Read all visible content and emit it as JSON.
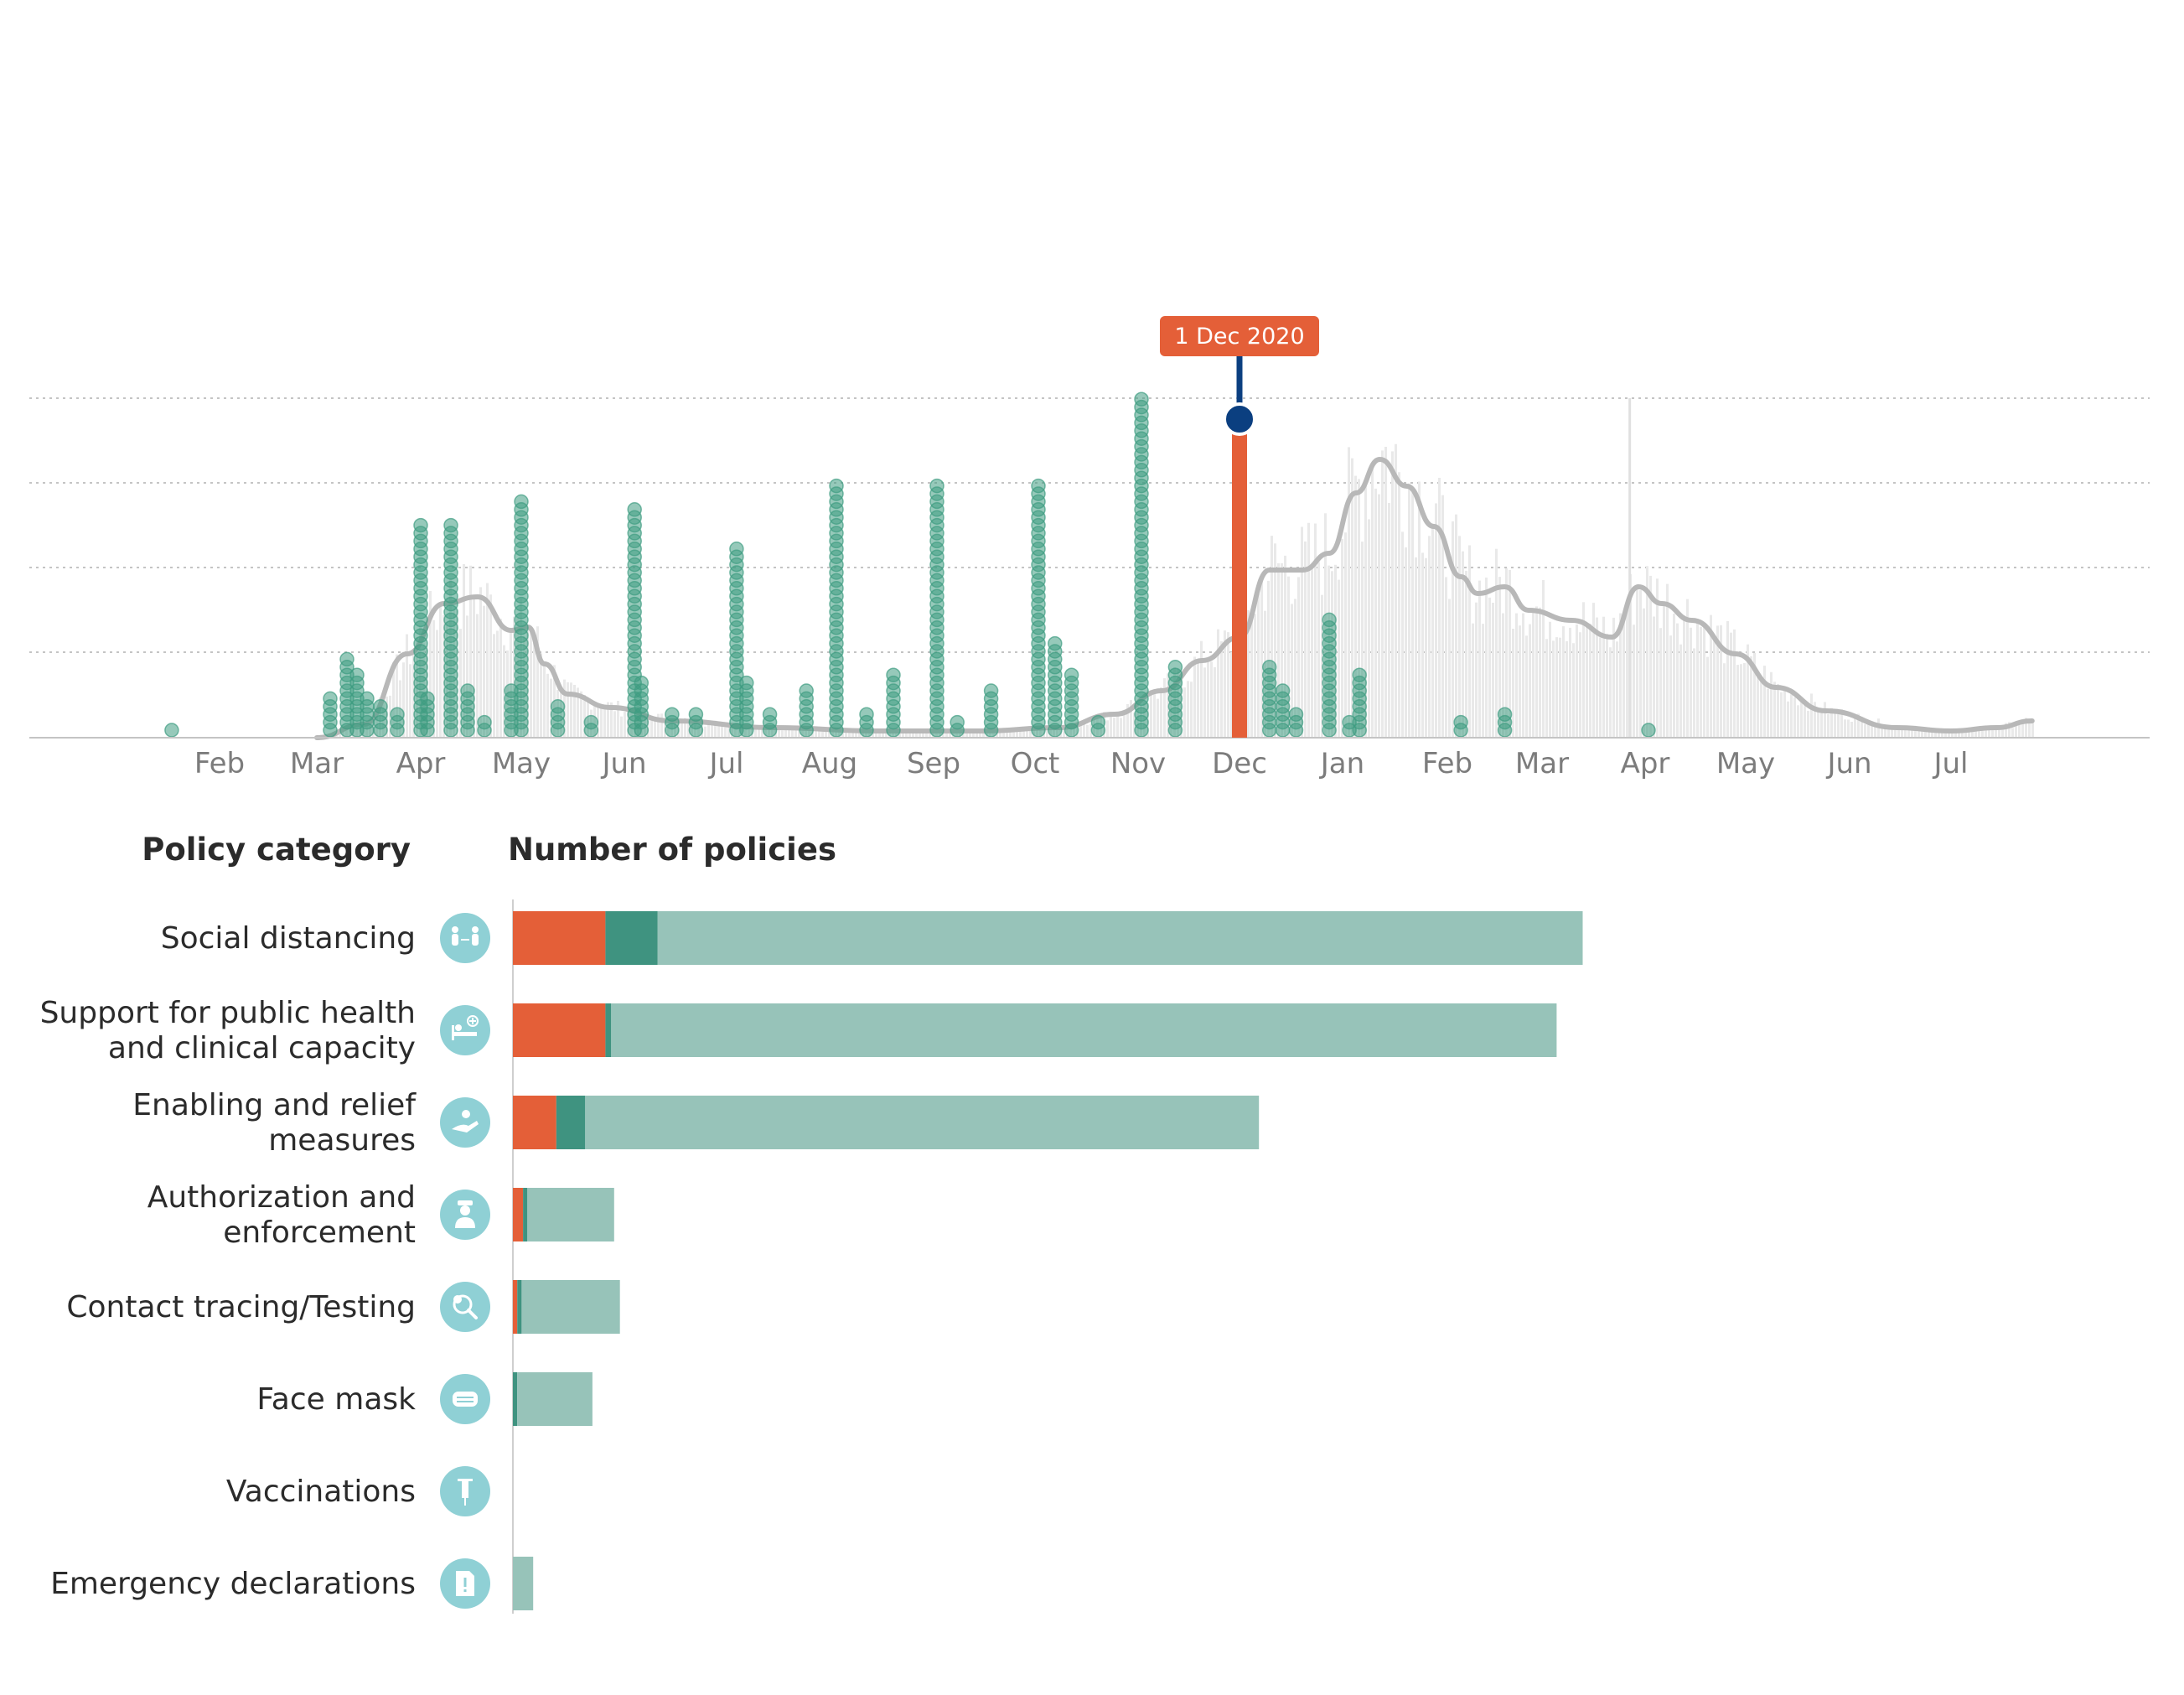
{
  "colors": {
    "recent": "#e45f38",
    "mid": "#3f9380",
    "older": "#97c3b9",
    "dot": "#3f9c82",
    "cases_bar": "#e9e9e9",
    "cases_line": "#b8b8b8",
    "grid": "#c4c4c4",
    "icon_circle": "#8fd0d5",
    "marker": "#0b3f80"
  },
  "timeline": {
    "x_tick_labels": [
      "Feb",
      "Mar",
      "Apr",
      "May",
      "Jun",
      "Jul",
      "Aug",
      "Sep",
      "Oct",
      "Nov",
      "Dec",
      "Jan",
      "Feb",
      "Mar",
      "Apr",
      "May",
      "Jun",
      "Jul"
    ],
    "selected_date_label": "1 Dec 2020"
  },
  "bars": {
    "title_left": "Policy category",
    "title_right": "Number of policies"
  },
  "chart_data": [
    {
      "type": "scatter",
      "title": "",
      "description": "Timeline of policy announcements (stacked dots per day) over daily COVID-19 cases (light bars) with 7-day average line",
      "x_range": [
        "2020-01-15",
        "2021-07-31"
      ],
      "grid": "horizontal dotted",
      "selected_date": "2020-12-01",
      "policy_dots": [
        {
          "date": "2020-01-17",
          "count": 1
        },
        {
          "date": "2020-03-05",
          "count": 5
        },
        {
          "date": "2020-03-10",
          "count": 10
        },
        {
          "date": "2020-03-13",
          "count": 8
        },
        {
          "date": "2020-03-16",
          "count": 5
        },
        {
          "date": "2020-03-20",
          "count": 4
        },
        {
          "date": "2020-03-25",
          "count": 3
        },
        {
          "date": "2020-04-01",
          "count": 27
        },
        {
          "date": "2020-04-03",
          "count": 5
        },
        {
          "date": "2020-04-10",
          "count": 27
        },
        {
          "date": "2020-04-15",
          "count": 6
        },
        {
          "date": "2020-04-20",
          "count": 2
        },
        {
          "date": "2020-04-28",
          "count": 6
        },
        {
          "date": "2020-05-01",
          "count": 30
        },
        {
          "date": "2020-05-12",
          "count": 4
        },
        {
          "date": "2020-05-22",
          "count": 2
        },
        {
          "date": "2020-06-04",
          "count": 29
        },
        {
          "date": "2020-06-06",
          "count": 7
        },
        {
          "date": "2020-06-15",
          "count": 3
        },
        {
          "date": "2020-06-22",
          "count": 3
        },
        {
          "date": "2020-07-04",
          "count": 24
        },
        {
          "date": "2020-07-07",
          "count": 7
        },
        {
          "date": "2020-07-14",
          "count": 3
        },
        {
          "date": "2020-07-25",
          "count": 6
        },
        {
          "date": "2020-08-03",
          "count": 32
        },
        {
          "date": "2020-08-12",
          "count": 3
        },
        {
          "date": "2020-08-20",
          "count": 8
        },
        {
          "date": "2020-09-02",
          "count": 32
        },
        {
          "date": "2020-09-08",
          "count": 2
        },
        {
          "date": "2020-09-18",
          "count": 6
        },
        {
          "date": "2020-10-02",
          "count": 32
        },
        {
          "date": "2020-10-07",
          "count": 12
        },
        {
          "date": "2020-10-12",
          "count": 8
        },
        {
          "date": "2020-10-20",
          "count": 2
        },
        {
          "date": "2020-11-02",
          "count": 43
        },
        {
          "date": "2020-11-12",
          "count": 9
        },
        {
          "date": "2020-12-01",
          "count": 41
        },
        {
          "date": "2020-12-10",
          "count": 9
        },
        {
          "date": "2020-12-14",
          "count": 6
        },
        {
          "date": "2020-12-18",
          "count": 3
        },
        {
          "date": "2020-12-28",
          "count": 15
        },
        {
          "date": "2021-01-06",
          "count": 8
        },
        {
          "date": "2021-01-03",
          "count": 2
        },
        {
          "date": "2021-02-05",
          "count": 2
        },
        {
          "date": "2021-02-18",
          "count": 3
        },
        {
          "date": "2021-04-02",
          "count": 1
        }
      ],
      "cases_trend": [
        {
          "date": "2020-03-01",
          "value": 0
        },
        {
          "date": "2020-03-15",
          "value": 4
        },
        {
          "date": "2020-03-28",
          "value": 25
        },
        {
          "date": "2020-04-08",
          "value": 40
        },
        {
          "date": "2020-04-18",
          "value": 42
        },
        {
          "date": "2020-04-28",
          "value": 32
        },
        {
          "date": "2020-05-03",
          "value": 33
        },
        {
          "date": "2020-05-08",
          "value": 22
        },
        {
          "date": "2020-05-15",
          "value": 13
        },
        {
          "date": "2020-05-28",
          "value": 9
        },
        {
          "date": "2020-06-15",
          "value": 5
        },
        {
          "date": "2020-07-15",
          "value": 3
        },
        {
          "date": "2020-08-15",
          "value": 2
        },
        {
          "date": "2020-09-15",
          "value": 2
        },
        {
          "date": "2020-10-08",
          "value": 3
        },
        {
          "date": "2020-10-25",
          "value": 7
        },
        {
          "date": "2020-11-08",
          "value": 14
        },
        {
          "date": "2020-11-20",
          "value": 23
        },
        {
          "date": "2020-12-01",
          "value": 30
        },
        {
          "date": "2020-12-10",
          "value": 50
        },
        {
          "date": "2020-12-20",
          "value": 50
        },
        {
          "date": "2020-12-28",
          "value": 55
        },
        {
          "date": "2021-01-05",
          "value": 73
        },
        {
          "date": "2021-01-12",
          "value": 83
        },
        {
          "date": "2021-01-20",
          "value": 75
        },
        {
          "date": "2021-01-28",
          "value": 63
        },
        {
          "date": "2021-02-05",
          "value": 48
        },
        {
          "date": "2021-02-10",
          "value": 43
        },
        {
          "date": "2021-02-18",
          "value": 45
        },
        {
          "date": "2021-02-25",
          "value": 38
        },
        {
          "date": "2021-03-10",
          "value": 35
        },
        {
          "date": "2021-03-22",
          "value": 30
        },
        {
          "date": "2021-03-30",
          "value": 45
        },
        {
          "date": "2021-04-06",
          "value": 40
        },
        {
          "date": "2021-04-15",
          "value": 35
        },
        {
          "date": "2021-04-28",
          "value": 25
        },
        {
          "date": "2021-05-10",
          "value": 15
        },
        {
          "date": "2021-05-25",
          "value": 8
        },
        {
          "date": "2021-06-15",
          "value": 3
        },
        {
          "date": "2021-07-01",
          "value": 2
        },
        {
          "date": "2021-07-15",
          "value": 3
        },
        {
          "date": "2021-07-26",
          "value": 5
        }
      ]
    },
    {
      "type": "bar",
      "orientation": "horizontal",
      "stacked": true,
      "title": "Number of policies",
      "categories": [
        {
          "label": "Social distancing",
          "label_lines": [
            "Social distancing"
          ],
          "icon": "social-distancing-icon"
        },
        {
          "label": "Support for public health and clinical capacity",
          "label_lines": [
            "Support for public health",
            "and clinical capacity"
          ],
          "icon": "hospital-bed-icon"
        },
        {
          "label": "Enabling and relief measures",
          "label_lines": [
            "Enabling and relief",
            "measures"
          ],
          "icon": "helping-hand-icon"
        },
        {
          "label": "Authorization and enforcement",
          "label_lines": [
            "Authorization and",
            "enforcement"
          ],
          "icon": "police-officer-icon"
        },
        {
          "label": "Contact tracing/Testing",
          "label_lines": [
            "Contact tracing/Testing"
          ],
          "icon": "magnifier-icon"
        },
        {
          "label": "Face mask",
          "label_lines": [
            "Face mask"
          ],
          "icon": "face-mask-icon"
        },
        {
          "label": "Vaccinations",
          "label_lines": [
            "Vaccinations"
          ],
          "icon": "syringe-icon"
        },
        {
          "label": "Emergency declarations",
          "label_lines": [
            "Emergency declarations"
          ],
          "icon": "document-alert-icon"
        }
      ],
      "series": [
        {
          "values": [
            32,
            32,
            15,
            3.5,
            1.5,
            0,
            0,
            0
          ]
        },
        {
          "values": [
            18,
            2,
            10,
            1.5,
            1.5,
            1.5,
            0,
            0
          ]
        },
        {
          "values": [
            320,
            327,
            233,
            30,
            34,
            26,
            0,
            7
          ]
        }
      ],
      "xlim": [
        0,
        520
      ]
    }
  ]
}
